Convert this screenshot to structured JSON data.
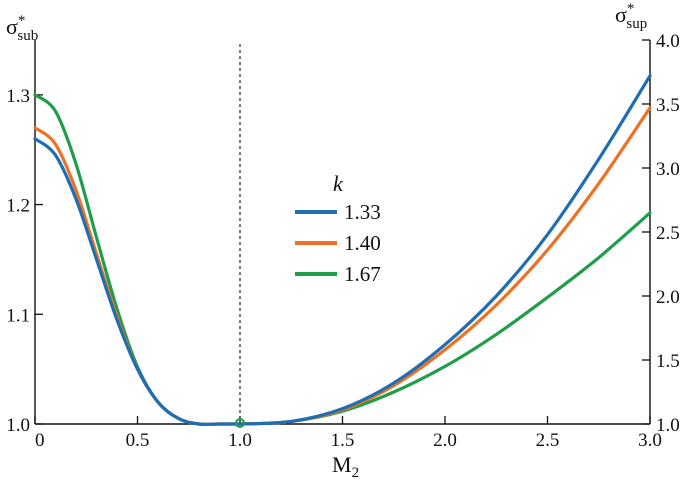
{
  "chart_data": {
    "type": "line",
    "xlabel": "M",
    "xlabel_sub": "2",
    "ylabel_left": "σ",
    "ylabel_left_sup": "*",
    "ylabel_left_sub": "sub",
    "ylabel_right": "σ",
    "ylabel_right_sup": "*",
    "ylabel_right_sub": "sup",
    "xlim": [
      0,
      3.0
    ],
    "ylim_left": [
      1.0,
      1.35
    ],
    "ylim_right": [
      1.0,
      4.0
    ],
    "x_ticks": [
      "0",
      "0.5",
      "1.0",
      "1.5",
      "2.0",
      "2.5",
      "3.0"
    ],
    "y_left_ticks": [
      "1.0",
      "1.1",
      "1.2",
      "1.3"
    ],
    "y_right_ticks": [
      "1.0",
      "1.5",
      "2.0",
      "2.5",
      "3.0",
      "3.5",
      "4.0"
    ],
    "reference_line_x": 1.0,
    "legend_title": "k",
    "legend_placement": "center",
    "grid": false,
    "subsonic_x": [
      0,
      0.1,
      0.2,
      0.3,
      0.4,
      0.5,
      0.6,
      0.7,
      0.8,
      0.9,
      1.0
    ],
    "supersonic_x": [
      1.0,
      1.25,
      1.5,
      1.75,
      2.0,
      2.25,
      2.5,
      2.75,
      3.0
    ],
    "series": [
      {
        "name": "1.33",
        "color": "#1f6db3",
        "subsonic_values": [
          1.26,
          1.245,
          1.205,
          1.15,
          1.095,
          1.05,
          1.02,
          1.005,
          1.0,
          1.0,
          1.0
        ],
        "supersonic_values": [
          1.0,
          1.02,
          1.12,
          1.32,
          1.62,
          2.0,
          2.48,
          3.07,
          3.72
        ]
      },
      {
        "name": "1.40",
        "color": "#ee7023",
        "subsonic_values": [
          1.27,
          1.255,
          1.213,
          1.155,
          1.098,
          1.05,
          1.02,
          1.005,
          1.0,
          1.0,
          1.0
        ],
        "supersonic_values": [
          1.0,
          1.02,
          1.11,
          1.3,
          1.58,
          1.93,
          2.36,
          2.88,
          3.47
        ]
      },
      {
        "name": "1.67",
        "color": "#1f9e49",
        "subsonic_values": [
          1.3,
          1.285,
          1.237,
          1.17,
          1.105,
          1.052,
          1.02,
          1.005,
          1.0,
          1.0,
          1.0
        ],
        "supersonic_values": [
          1.0,
          1.02,
          1.1,
          1.25,
          1.45,
          1.7,
          1.99,
          2.3,
          2.65
        ]
      }
    ]
  }
}
